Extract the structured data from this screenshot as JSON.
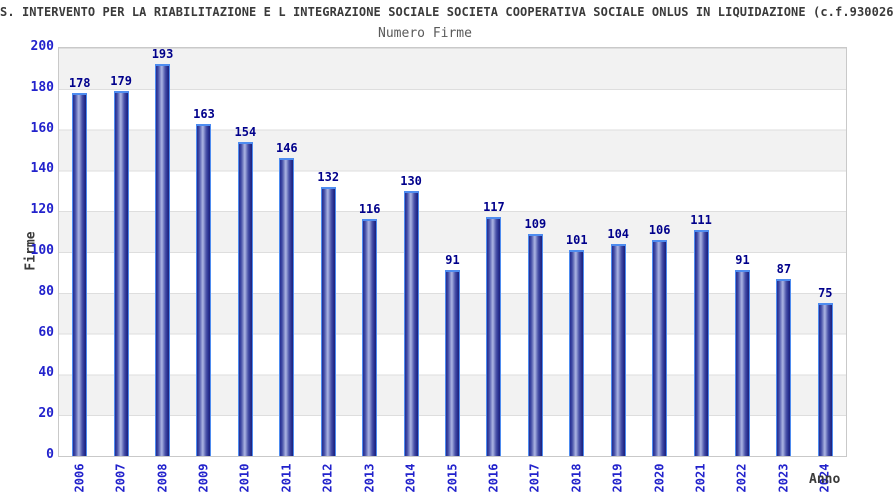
{
  "header": {
    "title": "S. INTERVENTO PER LA RIABILITAZIONE E L INTEGRAZIONE SOCIALE SOCIETA COOPERATIVA SOCIALE ONLUS IN LIQUIDAZIONE (c.f.930026",
    "subtitle": "Numero Firme"
  },
  "axes": {
    "y_title": "Firme",
    "x_title": "Anno"
  },
  "chart_data": {
    "type": "bar",
    "title": "Numero Firme",
    "xlabel": "Anno",
    "ylabel": "Firme",
    "categories": [
      "2006",
      "2007",
      "2008",
      "2009",
      "2010",
      "2011",
      "2012",
      "2013",
      "2014",
      "2015",
      "2016",
      "2017",
      "2018",
      "2019",
      "2020",
      "2021",
      "2022",
      "2023",
      "2024"
    ],
    "values": [
      178,
      179,
      193,
      163,
      154,
      146,
      132,
      116,
      130,
      91,
      117,
      109,
      101,
      104,
      106,
      111,
      91,
      87,
      75
    ],
    "ylim": [
      0,
      200
    ],
    "y_ticks": [
      0,
      20,
      40,
      60,
      80,
      100,
      120,
      140,
      160,
      180,
      200
    ],
    "grid": true,
    "legend": "none",
    "band_colors": [
      "#f2f2f2",
      "#ffffff"
    ],
    "gridline_color": "#dedede",
    "bar_gradient_dark": "#1e2484",
    "bar_gradient_light": "#aab3e2",
    "bar_outline_color": "#4e8cf0",
    "value_label_color": "#00008b",
    "tick_label_color": "#2222cc",
    "title_color": "#3a3a3a"
  }
}
